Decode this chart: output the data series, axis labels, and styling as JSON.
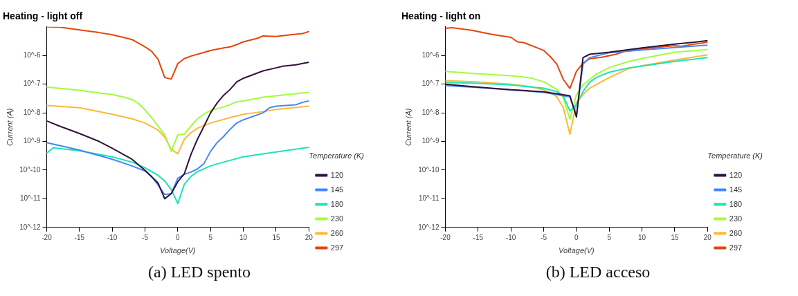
{
  "chart_data": [
    {
      "type": "line",
      "title": "Heating - light off",
      "xlabel": "Voltage(V)",
      "ylabel": "Current (A)",
      "legend_title": "Temperature (K)",
      "legend": "right",
      "log": "y",
      "grid": false,
      "marker": "none",
      "line_style": "solid",
      "xlim": [
        -20,
        20
      ],
      "xticks": [
        -20,
        -15,
        -10,
        -5,
        0,
        5,
        10,
        15,
        20
      ],
      "ylim": [
        1e-12,
        1e-05
      ],
      "yticks": [
        {
          "value": 1e-12,
          "label": "10^-12"
        },
        {
          "value": 1e-11,
          "label": "10^-11"
        },
        {
          "value": 1e-10,
          "label": "10^-10"
        },
        {
          "value": 1e-09,
          "label": "10^-9"
        },
        {
          "value": 1e-08,
          "label": "10^-8"
        },
        {
          "value": 1e-07,
          "label": "10^-7"
        },
        {
          "value": 1e-06,
          "label": "10^-6"
        }
      ],
      "annotations": [
        "(a) LED spento"
      ],
      "series": [
        {
          "name": "120",
          "color": "#30123b",
          "x": [
            -20,
            -18,
            -15,
            -12,
            -10,
            -7,
            -5,
            -3,
            -2,
            -1,
            0,
            1,
            2,
            3,
            4,
            5,
            6,
            7,
            8,
            9,
            10,
            13,
            15,
            16,
            18,
            20
          ],
          "values": [
            5.2e-09,
            3.4e-09,
            1.9e-09,
            1e-09,
            5.8e-10,
            2.4e-10,
            9.8e-11,
            3.5e-11,
            1e-11,
            1.5e-11,
            3.9e-11,
            7.5e-11,
            3.5e-10,
            1.2e-09,
            3.4e-09,
            1e-08,
            2.2e-08,
            4.1e-08,
            6.6e-08,
            1.2e-07,
            1.6e-07,
            2.9e-07,
            3.7e-07,
            4.2e-07,
            4.7e-07,
            5.8e-07
          ]
        },
        {
          "name": "145",
          "color": "#4686fb",
          "x": [
            -20,
            -15,
            -10,
            -7,
            -5,
            -4,
            -3,
            -2,
            -1,
            0,
            1,
            2,
            3,
            4,
            5,
            6,
            7,
            8,
            9,
            10,
            13,
            14,
            15,
            18,
            19,
            20
          ],
          "values": [
            9.1e-10,
            5e-10,
            2.4e-10,
            1.4e-10,
            9.3e-11,
            6e-11,
            3e-11,
            1.4e-11,
            1.5e-11,
            5.2e-11,
            7.1e-11,
            8.5e-11,
            1.1e-10,
            1.7e-10,
            4.5e-10,
            9.1e-10,
            1.5e-09,
            2.7e-09,
            4.4e-09,
            5.7e-09,
            1e-08,
            1.5e-08,
            1.7e-08,
            1.9e-08,
            2.3e-08,
            2.6e-08
          ]
        },
        {
          "name": "180",
          "color": "#1ae4b6",
          "x": [
            -20,
            -19,
            -15,
            -10,
            -7,
            -5,
            -3,
            -2,
            -1,
            0,
            1,
            2,
            3,
            5,
            7,
            10,
            15,
            20
          ],
          "values": [
            3.9e-10,
            6e-10,
            4.7e-10,
            2.9e-10,
            1.9e-10,
            1.2e-10,
            6.5e-11,
            4.2e-11,
            2.1e-11,
            6.8e-12,
            3.2e-11,
            6e-11,
            8.8e-11,
            1.4e-10,
            1.9e-10,
            2.9e-10,
            4.3e-10,
            6.2e-10
          ]
        },
        {
          "name": "230",
          "color": "#a2fc3c",
          "x": [
            -20,
            -18,
            -15,
            -12,
            -10,
            -8,
            -7,
            -6,
            -5,
            -4,
            -3,
            -2,
            -1,
            0,
            1,
            2,
            3,
            4,
            5,
            7,
            9,
            10,
            13,
            15,
            17,
            20
          ],
          "values": [
            7.9e-08,
            7.1e-08,
            6.1e-08,
            4.9e-08,
            4.3e-08,
            3.4e-08,
            2.9e-08,
            2.1e-08,
            1.25e-08,
            6.8e-09,
            3.4e-09,
            1.7e-09,
            4.5e-10,
            1.7e-09,
            1.8e-09,
            3.4e-09,
            6.2e-09,
            9.1e-09,
            1.2e-08,
            1.6e-08,
            2.4e-08,
            2.6e-08,
            3.5e-08,
            3.9e-08,
            4.4e-08,
            5.2e-08
          ]
        },
        {
          "name": "260",
          "color": "#fbb938",
          "x": [
            -20,
            -15,
            -10,
            -7,
            -5,
            -3,
            -2,
            -1,
            0,
            1,
            2,
            3,
            5,
            8,
            10,
            13,
            15,
            20
          ],
          "values": [
            1.8e-08,
            1.5e-08,
            8.9e-09,
            6.2e-09,
            4.4e-09,
            2.5e-09,
            1.4e-09,
            5.3e-10,
            3.7e-10,
            1.2e-09,
            2e-09,
            2.9e-09,
            4.4e-09,
            6.8e-09,
            8.9e-09,
            1.1e-08,
            1.3e-08,
            1.7e-08
          ]
        },
        {
          "name": "297",
          "color": "#e4460a",
          "x": [
            -20,
            -18,
            -15,
            -12,
            -10,
            -8,
            -7,
            -6,
            -5,
            -4,
            -3,
            -2,
            -1,
            0,
            1,
            2,
            3,
            5,
            7,
            8,
            9,
            10,
            12,
            13,
            15,
            17,
            19,
            20
          ],
          "values": [
            1e-05,
            9.8e-06,
            7.8e-06,
            6.3e-06,
            5.3e-06,
            4.1e-06,
            3.6e-06,
            2.7e-06,
            2e-06,
            1.4e-06,
            7.3e-07,
            1.7e-07,
            1.5e-07,
            5.2e-07,
            7.8e-07,
            9.5e-07,
            1.1e-06,
            1.5e-06,
            1.85e-06,
            2e-06,
            2.4e-06,
            3e-06,
            3.9e-06,
            4.8e-06,
            4.6e-06,
            5.2e-06,
            5.8e-06,
            6.9e-06
          ]
        }
      ]
    },
    {
      "type": "line",
      "title": "Heating - light on",
      "xlabel": "Voltage(V)",
      "ylabel": "Current (A)",
      "legend_title": "Temperature (K)",
      "legend": "right",
      "log": "y",
      "grid": false,
      "marker": "none",
      "line_style": "solid",
      "xlim": [
        -20,
        20
      ],
      "xticks": [
        -20,
        -15,
        -10,
        -5,
        0,
        5,
        10,
        15,
        20
      ],
      "ylim": [
        1e-12,
        1e-05
      ],
      "yticks": [
        {
          "value": 1e-12,
          "label": "10^-12"
        },
        {
          "value": 1e-11,
          "label": "10^-11"
        },
        {
          "value": 1e-10,
          "label": "10^-10"
        },
        {
          "value": 1e-09,
          "label": "10^-9"
        },
        {
          "value": 1e-08,
          "label": "10^-8"
        },
        {
          "value": 1e-07,
          "label": "10^-7"
        },
        {
          "value": 1e-06,
          "label": "10^-6"
        }
      ],
      "annotations": [
        "(b) LED acceso"
      ],
      "series": [
        {
          "name": "120",
          "color": "#30123b",
          "x": [
            -20,
            -15,
            -10,
            -5,
            -1,
            0,
            1,
            2,
            5,
            10,
            15,
            18,
            20
          ],
          "values": [
            1e-07,
            7.9e-08,
            6.4e-08,
            5.4e-08,
            3.9e-08,
            7.1e-09,
            8.4e-07,
            1.1e-06,
            1.3e-06,
            1.85e-06,
            2.5e-06,
            2.9e-06,
            3.3e-06
          ]
        },
        {
          "name": "145",
          "color": "#4686fb",
          "x": [
            -20,
            -15,
            -10,
            -5,
            -1,
            0,
            1,
            2,
            5,
            10,
            15,
            20
          ],
          "values": [
            8.9e-08,
            7.6e-08,
            6.3e-08,
            5.2e-08,
            3.6e-08,
            8.3e-09,
            5e-07,
            8.4e-07,
            1.25e-06,
            1.55e-06,
            1.9e-06,
            2.3e-06
          ]
        },
        {
          "name": "180",
          "color": "#1ae4b6",
          "x": [
            -20,
            -15,
            -10,
            -5,
            -3,
            -2,
            -1,
            0,
            1,
            2,
            3,
            5,
            8,
            10,
            15,
            20
          ],
          "values": [
            1.15e-07,
            1.07e-07,
            9.4e-08,
            7.2e-08,
            5.5e-08,
            3.9e-08,
            1.15e-08,
            1.9e-08,
            5.5e-08,
            1.15e-07,
            1.7e-07,
            2.6e-07,
            3.7e-07,
            4.3e-07,
            6.2e-07,
            8.4e-07
          ]
        },
        {
          "name": "230",
          "color": "#a2fc3c",
          "x": [
            -20,
            -15,
            -10,
            -7,
            -5,
            -3,
            -2,
            -1,
            0,
            1,
            2,
            3,
            5,
            8,
            10,
            15,
            20
          ],
          "values": [
            2.8e-07,
            2.3e-07,
            1.96e-07,
            1.65e-07,
            1.2e-07,
            6.6e-08,
            3.3e-08,
            5.9e-09,
            4.3e-08,
            9.4e-08,
            1.45e-07,
            2.2e-07,
            3.8e-07,
            6.2e-07,
            7.9e-07,
            1.3e-06,
            1.6e-06
          ]
        },
        {
          "name": "260",
          "color": "#fbb938",
          "x": [
            -20,
            -15,
            -10,
            -7,
            -5,
            -4,
            -3,
            -2,
            -1,
            0,
            1,
            2,
            5,
            8,
            10,
            15,
            20
          ],
          "values": [
            1.33e-07,
            1.2e-07,
            1e-07,
            8.1e-08,
            6.4e-08,
            5.1e-08,
            3.6e-08,
            1.5e-08,
            1.8e-09,
            2.3e-08,
            4.3e-08,
            7.2e-08,
            1.7e-07,
            3.5e-07,
            4.4e-07,
            7e-07,
            1.05e-06
          ]
        },
        {
          "name": "297",
          "color": "#e4460a",
          "x": [
            -20,
            -19,
            -16,
            -13,
            -10,
            -9,
            -8,
            -6,
            -5,
            -4,
            -3,
            -2,
            -1,
            0,
            1,
            2,
            4,
            6,
            8,
            10,
            13,
            15,
            16,
            18,
            20
          ],
          "values": [
            8.9e-06,
            9.4e-06,
            7.6e-06,
            5.5e-06,
            4.3e-06,
            3e-06,
            2.8e-06,
            1.85e-06,
            1.5e-06,
            9.2e-07,
            5e-07,
            1.45e-07,
            7.1e-08,
            2.8e-07,
            5.4e-07,
            7.7e-07,
            8.8e-07,
            1.1e-06,
            1.55e-06,
            1.7e-06,
            2e-06,
            2.2e-06,
            2.1e-06,
            2.5e-06,
            2.9e-06
          ]
        }
      ]
    }
  ]
}
